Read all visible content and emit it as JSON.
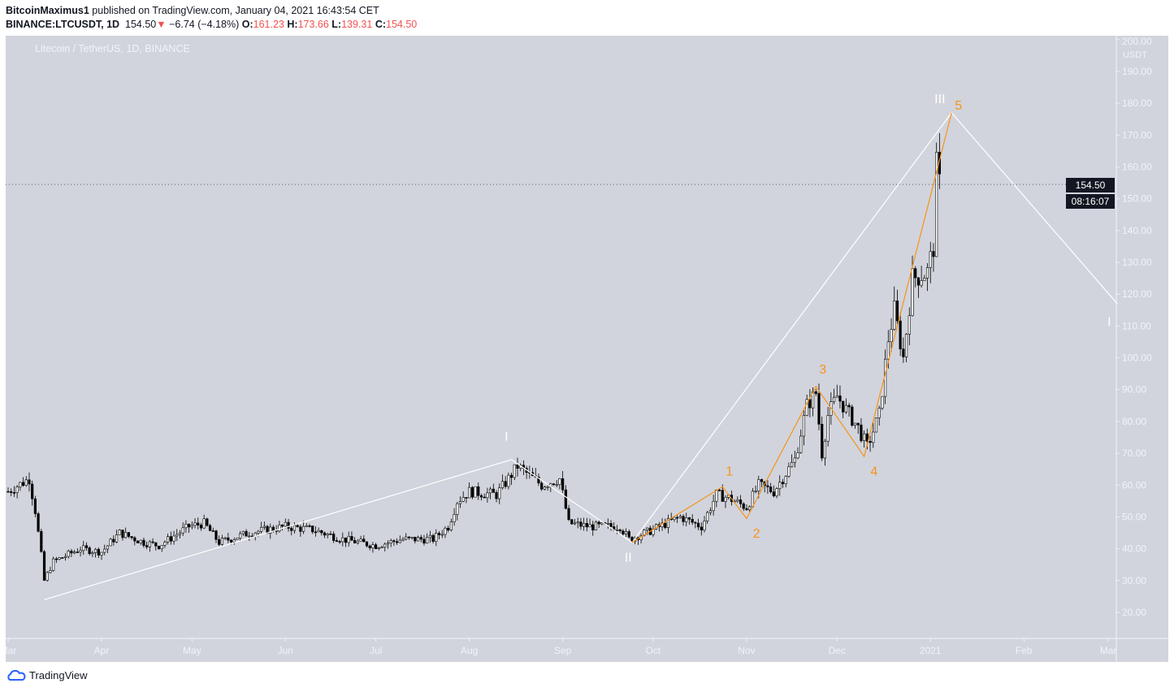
{
  "header": {
    "author": "BitcoinMaximus1",
    "published": "published on TradingView.com, January 04, 2021 16:43:54 CET",
    "symbol": "BINANCE:LTCUSDT, 1D",
    "last": "154.50",
    "change": "−6.74 (−4.18%)",
    "o_label": "O:",
    "o": "161.23",
    "h_label": "H:",
    "h": "173.66",
    "l_label": "L:",
    "l": "139.31",
    "c_label": "C:",
    "c": "154.50"
  },
  "chart_title": "Litecoin / TetherUS, 1D, BINANCE",
  "price_axis": {
    "unit": "USDT",
    "ticks": [
      "20.00",
      "30.00",
      "40.00",
      "50.00",
      "60.00",
      "70.00",
      "80.00",
      "90.00",
      "100.00",
      "110.00",
      "120.00",
      "130.00",
      "140.00",
      "150.00",
      "160.00",
      "170.00",
      "180.00",
      "190.00",
      "200.00"
    ],
    "last_price": "154.50",
    "countdown": "08:16:07"
  },
  "time_axis": [
    [
      "2020-03-01",
      "Mar"
    ],
    [
      "2020-04-01",
      "Apr"
    ],
    [
      "2020-05-01",
      "May"
    ],
    [
      "2020-06-01",
      "Jun"
    ],
    [
      "2020-07-01",
      "Jul"
    ],
    [
      "2020-08-01",
      "Aug"
    ],
    [
      "2020-09-01",
      "Sep"
    ],
    [
      "2020-10-01",
      "Oct"
    ],
    [
      "2020-11-01",
      "Nov"
    ],
    [
      "2020-12-01",
      "Dec"
    ],
    [
      "2021-01-01",
      "2021"
    ],
    [
      "2021-02-01",
      "Feb"
    ],
    [
      "2021-03-01",
      "Mar"
    ]
  ],
  "chart_data": {
    "type": "candlestick",
    "ylim": [
      14,
      203
    ],
    "approx_closes": [
      [
        "2020-03-01",
        58
      ],
      [
        "2020-03-08",
        62
      ],
      [
        "2020-03-10",
        52
      ],
      [
        "2020-03-12",
        38
      ],
      [
        "2020-03-13",
        30
      ],
      [
        "2020-03-16",
        36
      ],
      [
        "2020-03-25",
        40
      ],
      [
        "2020-04-01",
        39
      ],
      [
        "2020-04-07",
        45
      ],
      [
        "2020-04-15",
        42
      ],
      [
        "2020-04-20",
        41
      ],
      [
        "2020-04-30",
        47
      ],
      [
        "2020-05-05",
        48
      ],
      [
        "2020-05-10",
        42
      ],
      [
        "2020-05-20",
        45
      ],
      [
        "2020-06-01",
        47
      ],
      [
        "2020-06-10",
        46
      ],
      [
        "2020-06-20",
        43
      ],
      [
        "2020-07-01",
        41
      ],
      [
        "2020-07-10",
        43
      ],
      [
        "2020-07-20",
        43
      ],
      [
        "2020-07-25",
        47
      ],
      [
        "2020-07-28",
        55
      ],
      [
        "2020-08-01",
        58
      ],
      [
        "2020-08-10",
        57
      ],
      [
        "2020-08-14",
        62
      ],
      [
        "2020-08-17",
        66
      ],
      [
        "2020-08-25",
        60
      ],
      [
        "2020-08-31",
        62
      ],
      [
        "2020-09-03",
        48
      ],
      [
        "2020-09-10",
        47
      ],
      [
        "2020-09-20",
        47
      ],
      [
        "2020-09-23",
        43
      ],
      [
        "2020-10-01",
        46
      ],
      [
        "2020-10-10",
        50
      ],
      [
        "2020-10-17",
        47
      ],
      [
        "2020-10-22",
        57
      ],
      [
        "2020-10-26",
        56
      ],
      [
        "2020-11-01",
        53
      ],
      [
        "2020-11-05",
        60
      ],
      [
        "2020-11-10",
        58
      ],
      [
        "2020-11-17",
        68
      ],
      [
        "2020-11-21",
        85
      ],
      [
        "2020-11-24",
        89
      ],
      [
        "2020-11-26",
        70
      ],
      [
        "2020-11-28",
        82
      ],
      [
        "2020-12-01",
        88
      ],
      [
        "2020-12-08",
        78
      ],
      [
        "2020-12-11",
        72
      ],
      [
        "2020-12-15",
        82
      ],
      [
        "2020-12-18",
        106
      ],
      [
        "2020-12-20",
        115
      ],
      [
        "2020-12-23",
        100
      ],
      [
        "2020-12-26",
        125
      ],
      [
        "2020-12-31",
        127
      ],
      [
        "2021-01-02",
        135
      ],
      [
        "2021-01-03",
        160
      ],
      [
        "2021-01-04",
        154.5
      ]
    ],
    "wave_major": {
      "color": "#ffffff",
      "points": [
        [
          "2020-03-13",
          24
        ],
        [
          "2020-08-15",
          68
        ],
        [
          "2020-09-24",
          42
        ],
        [
          "2021-01-08",
          177
        ],
        [
          "2021-03-04",
          117
        ]
      ],
      "labels": [
        [
          "2020-08-15",
          74,
          "I"
        ],
        [
          "2020-09-25",
          36,
          "II"
        ],
        [
          "2021-01-07",
          180,
          "III"
        ],
        [
          "2021-03-03",
          110,
          "I"
        ]
      ]
    },
    "wave_minor": {
      "color": "#f7931a",
      "points": [
        [
          "2020-09-24",
          42
        ],
        [
          "2020-10-24",
          59.5
        ],
        [
          "2020-11-01",
          49.5
        ],
        [
          "2020-11-24",
          91
        ],
        [
          "2020-12-10",
          69
        ],
        [
          "2021-01-08",
          177
        ]
      ],
      "labels": [
        [
          "2020-10-24",
          63,
          "1"
        ],
        [
          "2020-11-02",
          43.5,
          "2"
        ],
        [
          "2020-11-24",
          95,
          "3"
        ],
        [
          "2020-12-11",
          63,
          "4"
        ],
        [
          "2021-01-08",
          178,
          "5"
        ]
      ]
    }
  },
  "footer": {
    "brand": "TradingView"
  }
}
